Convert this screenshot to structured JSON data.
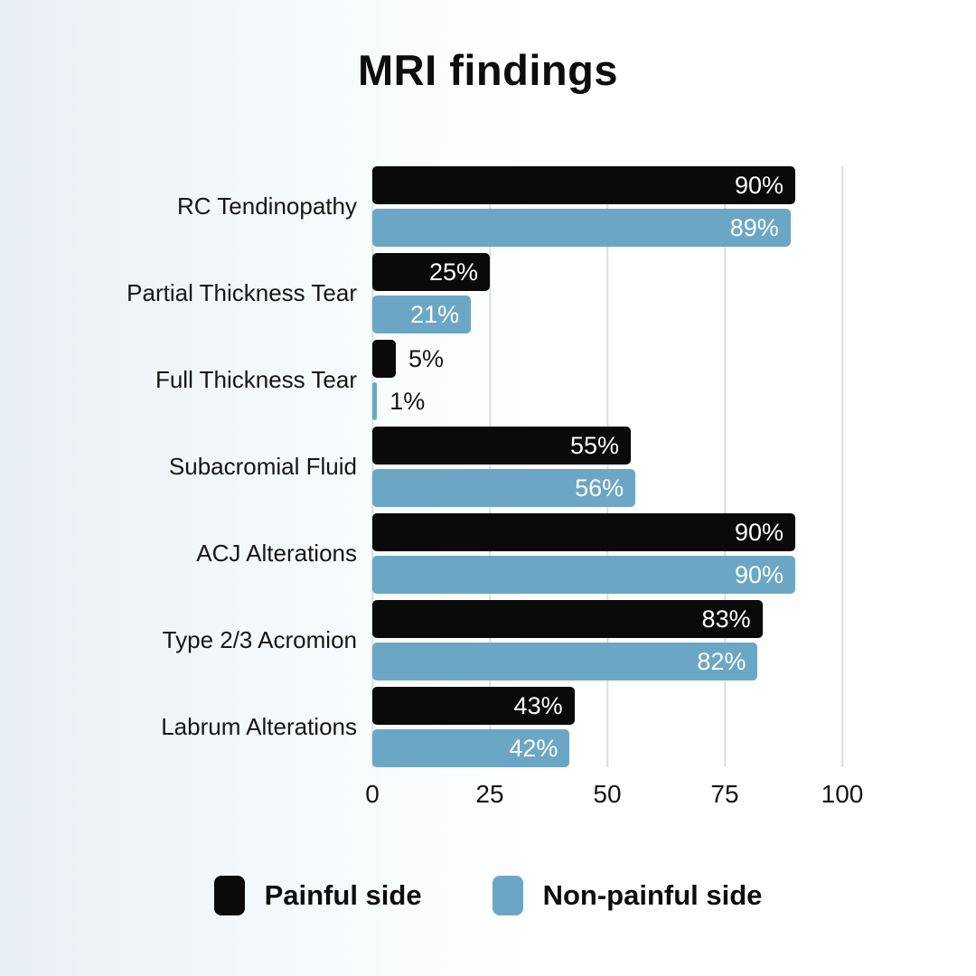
{
  "title": "MRI findings",
  "chart_data": {
    "type": "bar",
    "orientation": "horizontal",
    "title": "MRI findings",
    "categories": [
      "RC Tendinopathy",
      "Partial Thickness Tear",
      "Full Thickness Tear",
      "Subacromial Fluid",
      "ACJ Alterations",
      "Type 2/3 Acromion",
      "Labrum Alterations"
    ],
    "series": [
      {
        "name": "Painful side",
        "color": "#0a0a0a",
        "values": [
          90,
          25,
          5,
          55,
          90,
          83,
          43
        ],
        "labels": [
          "90%",
          "25%",
          "5%",
          "55%",
          "90%",
          "83%",
          "43%"
        ]
      },
      {
        "name": "Non-painful side",
        "color": "#6ba7c5",
        "values": [
          89,
          21,
          1,
          56,
          90,
          82,
          42
        ],
        "labels": [
          "89%",
          "21%",
          "1%",
          "56%",
          "90%",
          "82%",
          "42%"
        ]
      }
    ],
    "x_axis": {
      "min": 0,
      "max": 100,
      "ticks": [
        "0",
        "25",
        "50",
        "75",
        "100"
      ],
      "tick_values": [
        0,
        25,
        50,
        75,
        100
      ]
    },
    "grid": true,
    "legend_position": "bottom"
  },
  "legend": {
    "items": [
      {
        "label": "Painful side",
        "color": "#0a0a0a"
      },
      {
        "label": "Non-painful side",
        "color": "#6ba7c5"
      }
    ]
  },
  "colors": {
    "background_left": "#e8eff4",
    "background_right": "#ffffff",
    "gridline": "#dedede",
    "bar_black": "#0a0a0a",
    "bar_blue": "#6ba7c5",
    "value_text_inside": "#ffffff",
    "value_text_outside": "#161616"
  }
}
